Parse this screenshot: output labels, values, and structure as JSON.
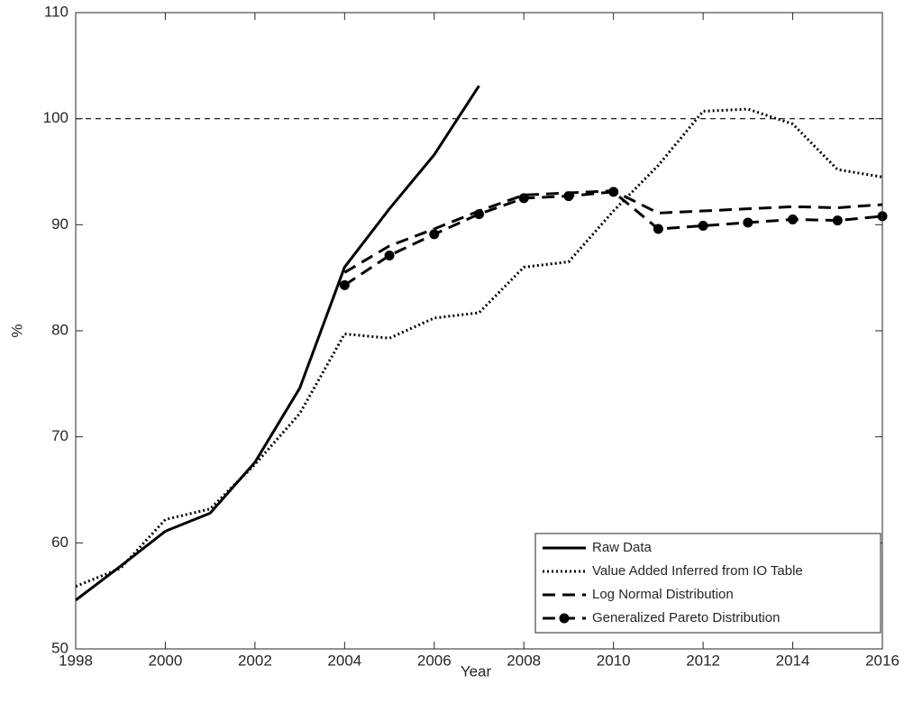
{
  "chart_data": {
    "type": "line",
    "x_label": "Year",
    "y_label": "%",
    "x": [
      1998,
      1999,
      2000,
      2001,
      2002,
      2003,
      2004,
      2005,
      2006,
      2007,
      2008,
      2009,
      2010,
      2011,
      2012,
      2013,
      2014,
      2015,
      2016
    ],
    "series": [
      {
        "name": "Raw Data",
        "color": "#000000",
        "linestyle": "solid",
        "marker": "none",
        "values": [
          54.6,
          57.8,
          61.1,
          62.8,
          67.6,
          74.6,
          86.0,
          91.5,
          96.6,
          103.1,
          null,
          null,
          null,
          null,
          null,
          null,
          null,
          null,
          null
        ]
      },
      {
        "name": "Value Added Inferred from IO Table",
        "color": "#000000",
        "linestyle": "dotted",
        "marker": "none",
        "values": [
          55.9,
          57.6,
          62.2,
          63.2,
          67.4,
          72.2,
          79.7,
          79.3,
          81.2,
          81.7,
          86.0,
          86.5,
          91.3,
          95.6,
          100.7,
          100.9,
          99.5,
          95.2,
          94.5
        ]
      },
      {
        "name": "Log Normal Distribution",
        "color": "#000000",
        "linestyle": "dashed",
        "marker": "none",
        "values": [
          null,
          null,
          null,
          null,
          null,
          null,
          85.5,
          88.0,
          89.6,
          91.3,
          92.8,
          93.0,
          93.2,
          91.1,
          91.3,
          91.5,
          91.7,
          91.6,
          91.9
        ]
      },
      {
        "name": "Generalized Pareto Distribution",
        "color": "#000000",
        "linestyle": "dashed",
        "marker": "circle",
        "values": [
          null,
          null,
          null,
          null,
          null,
          null,
          84.3,
          87.1,
          89.1,
          91.0,
          92.5,
          92.7,
          93.1,
          89.6,
          89.9,
          90.2,
          90.5,
          90.4,
          90.8
        ]
      }
    ],
    "hline": 100,
    "xlim": [
      1998,
      2016
    ],
    "xticks": [
      1998,
      2000,
      2002,
      2004,
      2006,
      2008,
      2010,
      2012,
      2014,
      2016
    ],
    "ylim": [
      50,
      110
    ],
    "yticks": [
      50,
      60,
      70,
      80,
      90,
      100,
      110
    ],
    "legend": "lower right",
    "grid": false
  }
}
